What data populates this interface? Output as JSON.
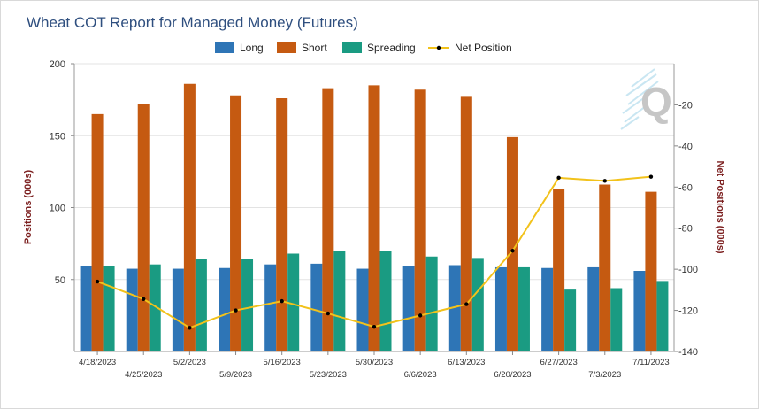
{
  "colors": {
    "long": "#2e75b6",
    "short": "#c55a11",
    "spreading": "#1a9b82",
    "net": "#f2c21b",
    "net_marker": "#000000",
    "axis_title": "#7b1e1e",
    "title": "#2f4f7f"
  },
  "chart_data": {
    "type": "bar",
    "title": "Wheat COT Report for Managed Money (Futures)",
    "ylabel": "Positions (000s)",
    "y2label": "Net Positions (000s)",
    "ylim": [
      0,
      200
    ],
    "y2lim": [
      -140,
      0
    ],
    "yticks": [
      "50",
      "100",
      "150",
      "200"
    ],
    "y2ticks": [
      "-20",
      "-40",
      "-60",
      "-80",
      "-100",
      "-120",
      "-140"
    ],
    "grid": true,
    "legend_position": "top-center",
    "categories": [
      "4/18/2023",
      "4/25/2023",
      "5/2/2023",
      "5/9/2023",
      "5/16/2023",
      "5/23/2023",
      "5/30/2023",
      "6/6/2023",
      "6/13/2023",
      "6/20/2023",
      "6/27/2023",
      "7/3/2023",
      "7/11/2023"
    ],
    "series": [
      {
        "name": "Long",
        "type": "bar",
        "axis": "left",
        "values": [
          59.5,
          57.5,
          57.5,
          58,
          60.5,
          61,
          57.5,
          59.5,
          60,
          58.5,
          58,
          58.5,
          56
        ]
      },
      {
        "name": "Short",
        "type": "bar",
        "axis": "left",
        "values": [
          165,
          172,
          186,
          178,
          176,
          183,
          185,
          182,
          177,
          149,
          113,
          116,
          111
        ]
      },
      {
        "name": "Spreading",
        "type": "bar",
        "axis": "left",
        "values": [
          59.5,
          60.5,
          64,
          64,
          68,
          70,
          70,
          66,
          65,
          58.5,
          43,
          44,
          49
        ]
      },
      {
        "name": "Net Position",
        "type": "line",
        "axis": "right",
        "values": [
          -106,
          -114.5,
          -128.5,
          -120,
          -115.5,
          -121.5,
          -128,
          -122.5,
          -117,
          -91,
          -55.5,
          -57,
          -55
        ]
      }
    ]
  },
  "watermark": {
    "text": "Q"
  }
}
